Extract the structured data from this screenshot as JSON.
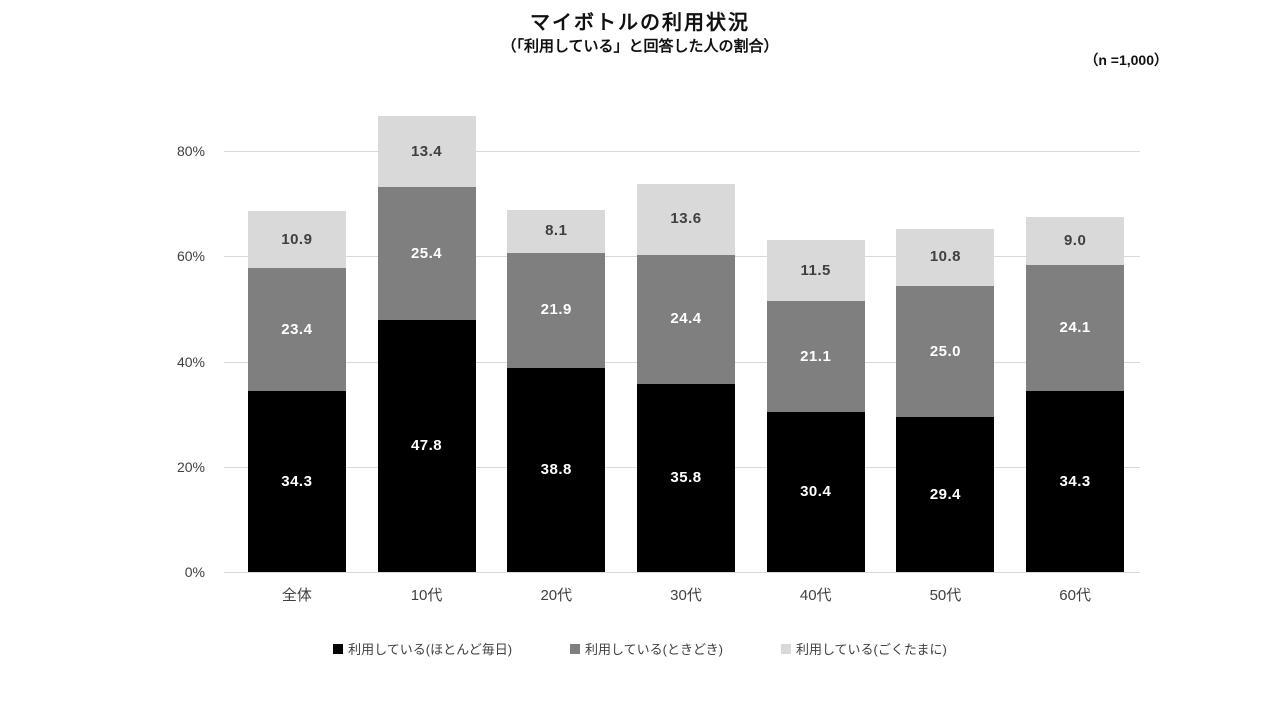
{
  "header": {
    "title": "マイボトルの利用状況",
    "subtitle": "（「利用している」と回答した人の割合）",
    "sample_size": "（n =1,000）"
  },
  "chart_data": {
    "type": "bar",
    "stacked": true,
    "title": "マイボトルの利用状況",
    "subtitle": "（「利用している」と回答した人の割合）",
    "sample_size_note": "（n =1,000）",
    "categories": [
      "全体",
      "10代",
      "20代",
      "30代",
      "40代",
      "50代",
      "60代"
    ],
    "series": [
      {
        "name": "利用している(ほとんど毎日)",
        "color": "#000000",
        "label_color": "#ffffff",
        "values": [
          34.3,
          47.8,
          38.8,
          35.8,
          30.4,
          29.4,
          34.3
        ]
      },
      {
        "name": "利用している(ときどき)",
        "color": "#7f7f7f",
        "label_color": "#ffffff",
        "values": [
          23.4,
          25.4,
          21.9,
          24.4,
          21.1,
          25.0,
          24.1
        ]
      },
      {
        "name": "利用している(ごくたまに)",
        "color": "#d9d9d9",
        "label_color": "#3f3f3f",
        "values": [
          10.9,
          13.4,
          8.1,
          13.6,
          11.5,
          10.8,
          9.0
        ]
      }
    ],
    "xlabel": "",
    "ylabel": "",
    "y_ticks": [
      "0%",
      "20%",
      "40%",
      "60%",
      "80%"
    ],
    "ylim": [
      0,
      80
    ],
    "grid": true,
    "gridline_color": "#d9d9d9",
    "legend_position": "bottom"
  }
}
